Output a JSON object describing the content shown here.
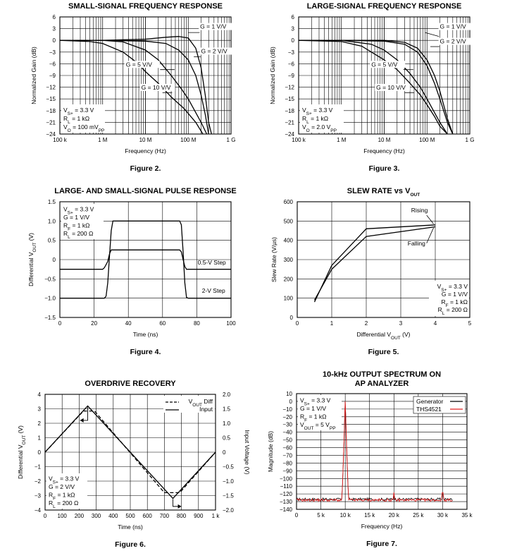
{
  "chart_data": [
    {
      "id": "fig2",
      "type": "line",
      "figure": "Figure 2.",
      "title": "SMALL-SIGNAL FREQUENCY RESPONSE",
      "xlabel": "Frequency (Hz)",
      "ylabel": "Normalized Gain (dB)",
      "xscale": "log",
      "xlim": [
        100000,
        1000000000
      ],
      "ylim": [
        -24,
        6
      ],
      "xticks": [
        100000,
        1000000,
        10000000,
        100000000,
        1000000000
      ],
      "xticklabels": [
        "100 k",
        "1 M",
        "10 M",
        "100 M",
        "1 G"
      ],
      "yticks": [
        6,
        3,
        0,
        -3,
        -6,
        -9,
        -12,
        -15,
        -18,
        -21,
        -24
      ],
      "yticklabels": [
        "6",
        "3",
        "0",
        "−3",
        "−6",
        "−9",
        "−12",
        "−15",
        "−18",
        "−21",
        "−24"
      ],
      "conditions": [
        "Vₛ₊ = 3.3 V",
        "Rₗ = 1 kΩ",
        "Vₒ = 100 mVₚₚ"
      ],
      "series": [
        {
          "name": "G = 1 V/V",
          "x": [
            100000,
            1000000,
            10000000,
            30000000,
            60000000,
            100000000,
            150000000,
            200000000,
            250000000,
            300000000,
            350000000
          ],
          "y": [
            0,
            0,
            0.3,
            0.8,
            1.0,
            0.6,
            -2,
            -7,
            -14,
            -21,
            -24
          ]
        },
        {
          "name": "G = 2 V/V",
          "x": [
            100000,
            1000000,
            10000000,
            30000000,
            60000000,
            100000000,
            150000000,
            200000000,
            250000000,
            300000000
          ],
          "y": [
            0,
            0,
            -0.2,
            -0.8,
            -2.5,
            -5,
            -9,
            -14,
            -19,
            -24
          ]
        },
        {
          "name": "G = 5 V/V",
          "x": [
            100000,
            1000000,
            3000000,
            10000000,
            20000000,
            40000000,
            70000000,
            100000000,
            150000000,
            200000000,
            270000000
          ],
          "y": [
            0,
            0,
            -0.4,
            -2.5,
            -5,
            -9,
            -12.5,
            -15,
            -18.5,
            -21,
            -24
          ]
        },
        {
          "name": "G = 10 V/V",
          "x": [
            100000,
            500000,
            1000000,
            3000000,
            6000000,
            10000000,
            20000000,
            40000000,
            80000000,
            150000000,
            220000000
          ],
          "y": [
            0,
            -0.3,
            -0.8,
            -3,
            -5.5,
            -8,
            -11,
            -14.5,
            -17.5,
            -21,
            -24
          ]
        }
      ]
    },
    {
      "id": "fig3",
      "type": "line",
      "figure": "Figure 3.",
      "title": "LARGE-SIGNAL FREQUENCY RESPONSE",
      "xlabel": "Frequency (Hz)",
      "ylabel": "Normalized Gain (dB)",
      "xscale": "log",
      "xlim": [
        100000,
        1000000000
      ],
      "ylim": [
        -24,
        6
      ],
      "xticks": [
        100000,
        1000000,
        10000000,
        100000000,
        1000000000
      ],
      "xticklabels": [
        "100 k",
        "1 M",
        "10 M",
        "100 M",
        "1 G"
      ],
      "yticks": [
        6,
        3,
        0,
        -3,
        -6,
        -9,
        -12,
        -15,
        -18,
        -21,
        -24
      ],
      "yticklabels": [
        "6",
        "3",
        "0",
        "−3",
        "−6",
        "−9",
        "−12",
        "−15",
        "−18",
        "−21",
        "−24"
      ],
      "conditions": [
        "Vₛ₊ = 3.3 V",
        "Rₗ = 1 kΩ",
        "Vₒ = 2.0 Vₚₚ"
      ],
      "series": [
        {
          "name": "G = 1 V/V",
          "x": [
            100000,
            1000000,
            10000000,
            30000000,
            60000000,
            100000000,
            150000000,
            200000000,
            300000000,
            400000000
          ],
          "y": [
            0,
            0,
            0,
            -0.5,
            -2,
            -5,
            -9,
            -13,
            -20,
            -24
          ]
        },
        {
          "name": "G = 2 V/V",
          "x": [
            100000,
            1000000,
            10000000,
            30000000,
            60000000,
            100000000,
            150000000,
            200000000,
            300000000,
            400000000
          ],
          "y": [
            0,
            0,
            -0.2,
            -1,
            -3,
            -6.5,
            -11,
            -15,
            -21,
            -24
          ]
        },
        {
          "name": "G = 5 V/V",
          "x": [
            100000,
            1000000,
            5000000,
            10000000,
            20000000,
            40000000,
            70000000,
            100000000,
            150000000,
            200000000,
            300000000
          ],
          "y": [
            0,
            0,
            -1,
            -2.5,
            -5,
            -8.5,
            -12,
            -15,
            -18.5,
            -21,
            -24
          ]
        },
        {
          "name": "G = 10 V/V",
          "x": [
            100000,
            1000000,
            3000000,
            10000000,
            20000000,
            40000000,
            70000000,
            100000000,
            150000000,
            200000000,
            300000000
          ],
          "y": [
            0,
            -0.3,
            -1.5,
            -5,
            -7.5,
            -11,
            -14,
            -16.5,
            -19.5,
            -22,
            -24
          ]
        }
      ]
    },
    {
      "id": "fig4",
      "type": "line",
      "figure": "Figure 4.",
      "title": "LARGE- AND SMALL-SIGNAL PULSE RESPONSE",
      "xlabel": "Time (ns)",
      "ylabel": "Differential Vₒᵤₜ (V)",
      "xlim": [
        0,
        100
      ],
      "ylim": [
        -1.5,
        1.5
      ],
      "xticks": [
        0,
        20,
        40,
        60,
        80,
        100
      ],
      "xticklabels": [
        "0",
        "20",
        "40",
        "60",
        "80",
        "100"
      ],
      "yticks": [
        1.5,
        1.0,
        0.5,
        0,
        -0.5,
        -1.0,
        -1.5
      ],
      "yticklabels": [
        "1.5",
        "1.0",
        "0.5",
        "0",
        "−0.5",
        "−1.0",
        "−1.5"
      ],
      "conditions": [
        "Vₛ₊ = 3.3 V",
        "G = 1 V/V",
        "Rƒ = 1 kΩ",
        "Rₗ = 200 Ω"
      ],
      "series": [
        {
          "name": "0.5-V Step",
          "x": [
            0,
            25,
            26,
            28,
            29,
            30,
            70,
            71,
            72,
            73,
            74,
            100
          ],
          "y": [
            -0.25,
            -0.25,
            -0.21,
            -0.05,
            0.15,
            0.25,
            0.25,
            0.2,
            0,
            -0.18,
            -0.25,
            -0.25
          ]
        },
        {
          "name": "2-V Step",
          "x": [
            0,
            26,
            27,
            28,
            29,
            30,
            31,
            70,
            71,
            72,
            73,
            74,
            75,
            100
          ],
          "y": [
            -1,
            -1,
            -0.95,
            -0.6,
            0.1,
            0.75,
            1,
            1,
            0.9,
            0.2,
            -0.6,
            -0.98,
            -1,
            -1
          ]
        }
      ]
    },
    {
      "id": "fig5",
      "type": "line",
      "figure": "Figure 5.",
      "title": "SLEW RATE vs Vₒᵤₜ",
      "xlabel": "Differential Vₒᵤₜ (V)",
      "ylabel": "Slew Rate (V/µs)",
      "xlim": [
        0,
        5
      ],
      "ylim": [
        0,
        600
      ],
      "xticks": [
        0,
        1,
        2,
        3,
        4,
        5
      ],
      "xticklabels": [
        "0",
        "1",
        "2",
        "3",
        "4",
        "5"
      ],
      "yticks": [
        600,
        500,
        400,
        300,
        200,
        100,
        0
      ],
      "yticklabels": [
        "600",
        "500",
        "400",
        "300",
        "200",
        "100",
        "0"
      ],
      "conditions": [
        "Vₛ₊ = 3.3 V",
        "G = 1 V/V",
        "Rƒ = 1 kΩ",
        "Rₗ = 200 Ω"
      ],
      "series": [
        {
          "name": "Rising",
          "x": [
            0.5,
            1,
            2,
            4
          ],
          "y": [
            80,
            270,
            460,
            480
          ]
        },
        {
          "name": "Falling",
          "x": [
            0.5,
            1,
            2,
            4
          ],
          "y": [
            90,
            250,
            420,
            470
          ]
        }
      ]
    },
    {
      "id": "fig6",
      "type": "line",
      "figure": "Figure 6.",
      "title": "OVERDRIVE RECOVERY",
      "xlabel": "Time (ns)",
      "ylabel": "Differential Vₒᵤₜ (V)",
      "ylabel2": "Input Voltage (V)",
      "xlim": [
        0,
        1000
      ],
      "ylim": [
        -4,
        4
      ],
      "ylim2": [
        -2,
        2
      ],
      "xticks": [
        0,
        100,
        200,
        300,
        400,
        500,
        600,
        700,
        800,
        900,
        1000
      ],
      "xticklabels": [
        "0",
        "100",
        "200",
        "300",
        "400",
        "500",
        "600",
        "700",
        "800",
        "900",
        "1 k"
      ],
      "yticks": [
        4,
        3,
        2,
        1,
        0,
        -1,
        -2,
        -3,
        -4
      ],
      "yticklabels": [
        "4",
        "3",
        "2",
        "1",
        "0",
        "−1",
        "−2",
        "−3",
        "−4"
      ],
      "yticks2": [
        2,
        1.5,
        1,
        0.5,
        0,
        -0.5,
        -1,
        -1.5,
        -2
      ],
      "yticklabels2": [
        "2.0",
        "1.5",
        "1.0",
        "0.5",
        "0",
        "−0.5",
        "−1.0",
        "−1.5",
        "−2.0"
      ],
      "conditions": [
        "Vₛ₊ = 3.3 V",
        "G = 2 V/V",
        "Rƒ = 1 kΩ",
        "Rₗ = 200 Ω"
      ],
      "legend": [
        "Vₒᵤₜ Diff",
        "Input"
      ],
      "series": [
        {
          "name": "Vₒᵤₜ Diff",
          "style": "dashed",
          "x": [
            0,
            225,
            290,
            700,
            790,
            1000
          ],
          "y": [
            0,
            2.85,
            2.85,
            -2.8,
            -2.8,
            0
          ]
        },
        {
          "name": "Input",
          "style": "solid",
          "x": [
            0,
            250,
            750,
            1000
          ],
          "y": [
            0,
            1.6,
            -1.6,
            0
          ]
        }
      ]
    },
    {
      "id": "fig7",
      "type": "line",
      "figure": "Figure 7.",
      "title": "10-kHz OUTPUT SPECTRUM ON",
      "title2": "AP ANALYZER",
      "xlabel": "Frequency (Hz)",
      "ylabel": "Magnitude (dB)",
      "xlim": [
        0,
        35000
      ],
      "ylim": [
        -140,
        10
      ],
      "xticks": [
        0,
        5000,
        10000,
        15000,
        20000,
        25000,
        30000,
        35000
      ],
      "xticklabels": [
        "0",
        "5 k",
        "10 k",
        "15 k",
        "20 k",
        "25 k",
        "30 k",
        "35 k"
      ],
      "yticks": [
        10,
        0,
        -10,
        -20,
        -30,
        -40,
        -50,
        -60,
        -70,
        -80,
        -90,
        -100,
        -110,
        -120,
        -130,
        -140
      ],
      "yticklabels": [
        "10",
        "0",
        "−10",
        "−20",
        "−30",
        "−40",
        "−50",
        "−60",
        "−70",
        "−80",
        "−90",
        "−100",
        "−110",
        "−120",
        "−130",
        "−140"
      ],
      "conditions": [
        "Vₛ₊ = 3.3 V",
        "G = 1 V/V",
        "Rƒ = 1 kΩ",
        "Vₒᵤₜ = 5 Vₚₚ"
      ],
      "series": [
        {
          "name": "Generator",
          "color": "#000000",
          "noise_floor": -127,
          "peaks": [
            {
              "x": 10000,
              "y": 0
            },
            {
              "x": 20000,
              "y": -120
            },
            {
              "x": 30000,
              "y": -119
            }
          ]
        },
        {
          "name": "THS4521",
          "color": "#e02020",
          "noise_floor": -128,
          "peaks": [
            {
              "x": 10000,
              "y": 0
            },
            {
              "x": 20000,
              "y": -118
            },
            {
              "x": 30000,
              "y": -117
            }
          ]
        }
      ]
    }
  ],
  "cond_labels": {
    "fig2": [
      [
        "V",
        "S+",
        " = 3.3 V"
      ],
      [
        "R",
        "L",
        " = 1 kΩ"
      ],
      [
        "V",
        "O",
        " = 100 mV",
        "PP"
      ]
    ],
    "fig3": [
      [
        "V",
        "S+",
        " = 3.3 V"
      ],
      [
        "R",
        "L",
        " = 1 kΩ"
      ],
      [
        "V",
        "O",
        " = 2.0 V",
        "PP"
      ]
    ],
    "fig4": [
      [
        "V",
        "S+",
        " = 3.3 V"
      ],
      [
        "G = 1 V/V"
      ],
      [
        "R",
        "F",
        " = 1 kΩ"
      ],
      [
        "R",
        "L",
        " = 200 Ω"
      ]
    ],
    "fig5": [
      [
        "V",
        "S+",
        " = 3.3 V"
      ],
      [
        "G = 1 V/V"
      ],
      [
        "R",
        "F",
        " = 1 kΩ"
      ],
      [
        "R",
        "L",
        " = 200 Ω"
      ]
    ],
    "fig6": [
      [
        "V",
        "S+",
        " = 3.3 V"
      ],
      [
        "G = 2 V/V"
      ],
      [
        "R",
        "F",
        " = 1 kΩ"
      ],
      [
        "R",
        "L",
        " = 200 Ω"
      ]
    ],
    "fig7": [
      [
        "V",
        "S+",
        " = 3.3 V"
      ],
      [
        "G = 1 V/V"
      ],
      [
        "R",
        "F",
        " = 1 kΩ"
      ],
      [
        "V",
        "OUT",
        " = 5 V",
        "PP"
      ]
    ]
  },
  "title_parts": {
    "fig5": [
      "SLEW RATE vs V",
      "OUT"
    ]
  },
  "axis_label_parts": {
    "fig4_y": [
      "Differential V",
      "OUT",
      " (V)"
    ],
    "fig5_x": [
      "Differential V",
      "OUT",
      " (V)"
    ],
    "fig6_y": [
      "Differential V",
      "OUT",
      " (V)"
    ],
    "fig6_legend": [
      "V",
      "OUT",
      " Diff"
    ]
  }
}
